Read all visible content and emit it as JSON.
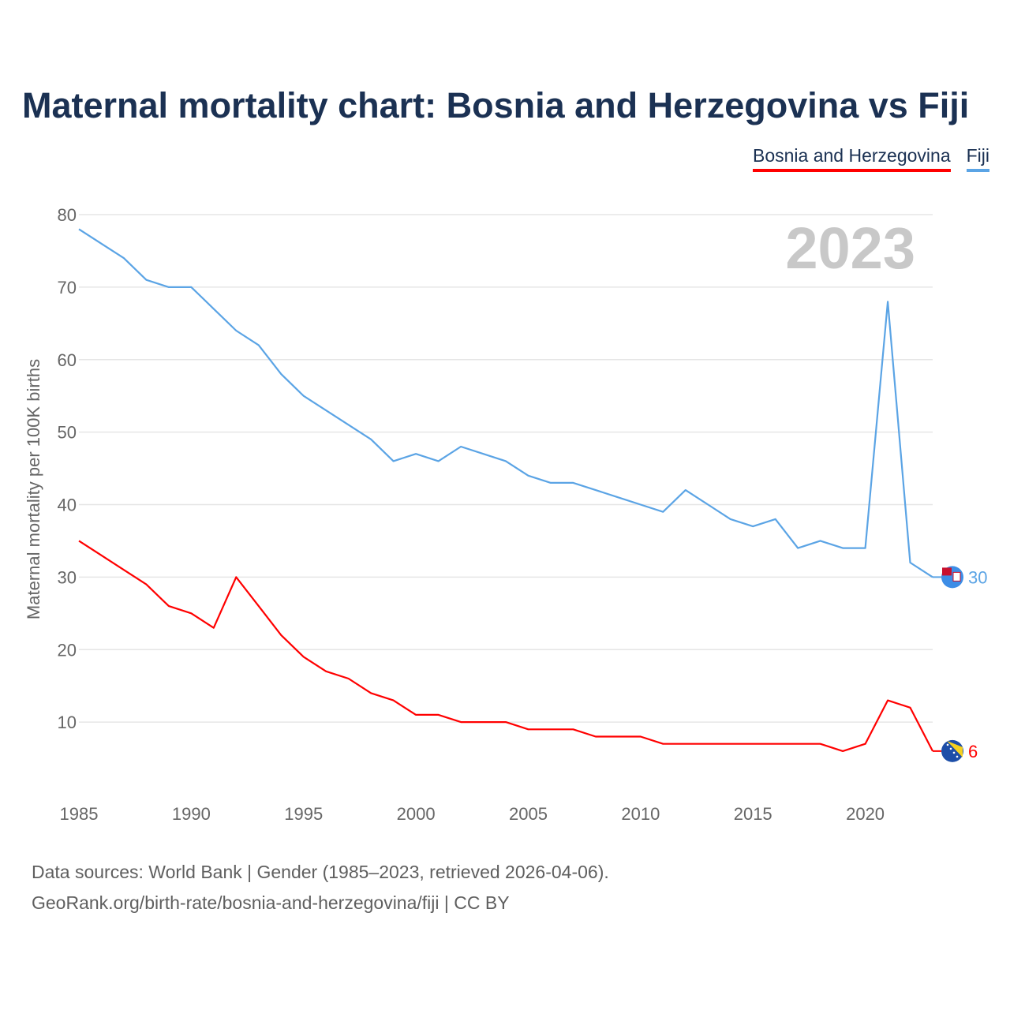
{
  "title": "Maternal mortality chart: Bosnia and Herzegovina vs Fiji",
  "legend": {
    "bih": "Bosnia and Herzegovina",
    "fiji": "Fiji"
  },
  "year_watermark": "2023",
  "footer": {
    "line1": "Data sources: World Bank | Gender (1985–2023, retrieved 2026-04-06).",
    "line2": "GeoRank.org/birth-rate/bosnia-and-herzegovina/fiji | CC BY"
  },
  "colors": {
    "bih": "#ff0000",
    "fiji": "#5ba4e5",
    "title": "#1b3153"
  },
  "chart_data": {
    "type": "line",
    "title": "Maternal mortality chart: Bosnia and Herzegovina vs Fiji",
    "xlabel": "",
    "ylabel": "Maternal mortality per 100K births",
    "xlim": [
      1985,
      2023
    ],
    "ylim": [
      0,
      80
    ],
    "x_ticks": [
      1985,
      1990,
      1995,
      2000,
      2005,
      2010,
      2015,
      2020
    ],
    "y_ticks": [
      10,
      20,
      30,
      40,
      50,
      60,
      70,
      80
    ],
    "grid": true,
    "legend_position": "top-right",
    "x": [
      1985,
      1986,
      1987,
      1988,
      1989,
      1990,
      1991,
      1992,
      1993,
      1994,
      1995,
      1996,
      1997,
      1998,
      1999,
      2000,
      2001,
      2002,
      2003,
      2004,
      2005,
      2006,
      2007,
      2008,
      2009,
      2010,
      2011,
      2012,
      2013,
      2014,
      2015,
      2016,
      2017,
      2018,
      2019,
      2020,
      2021,
      2022,
      2023
    ],
    "series": [
      {
        "name": "Fiji",
        "color": "#5ba4e5",
        "end_label": "30",
        "values": [
          78,
          76,
          74,
          71,
          70,
          70,
          67,
          64,
          62,
          58,
          55,
          53,
          51,
          49,
          46,
          47,
          46,
          48,
          47,
          46,
          44,
          43,
          43,
          42,
          41,
          40,
          39,
          42,
          40,
          38,
          37,
          38,
          34,
          35,
          34,
          34,
          68,
          32,
          30
        ]
      },
      {
        "name": "Bosnia and Herzegovina",
        "color": "#ff0000",
        "end_label": "6",
        "values": [
          35,
          33,
          31,
          29,
          26,
          25,
          23,
          30,
          26,
          22,
          19,
          17,
          16,
          14,
          13,
          11,
          11,
          10,
          10,
          10,
          9,
          9,
          9,
          8,
          8,
          8,
          7,
          7,
          7,
          7,
          7,
          7,
          7,
          7,
          6,
          7,
          13,
          12,
          6
        ]
      }
    ]
  }
}
